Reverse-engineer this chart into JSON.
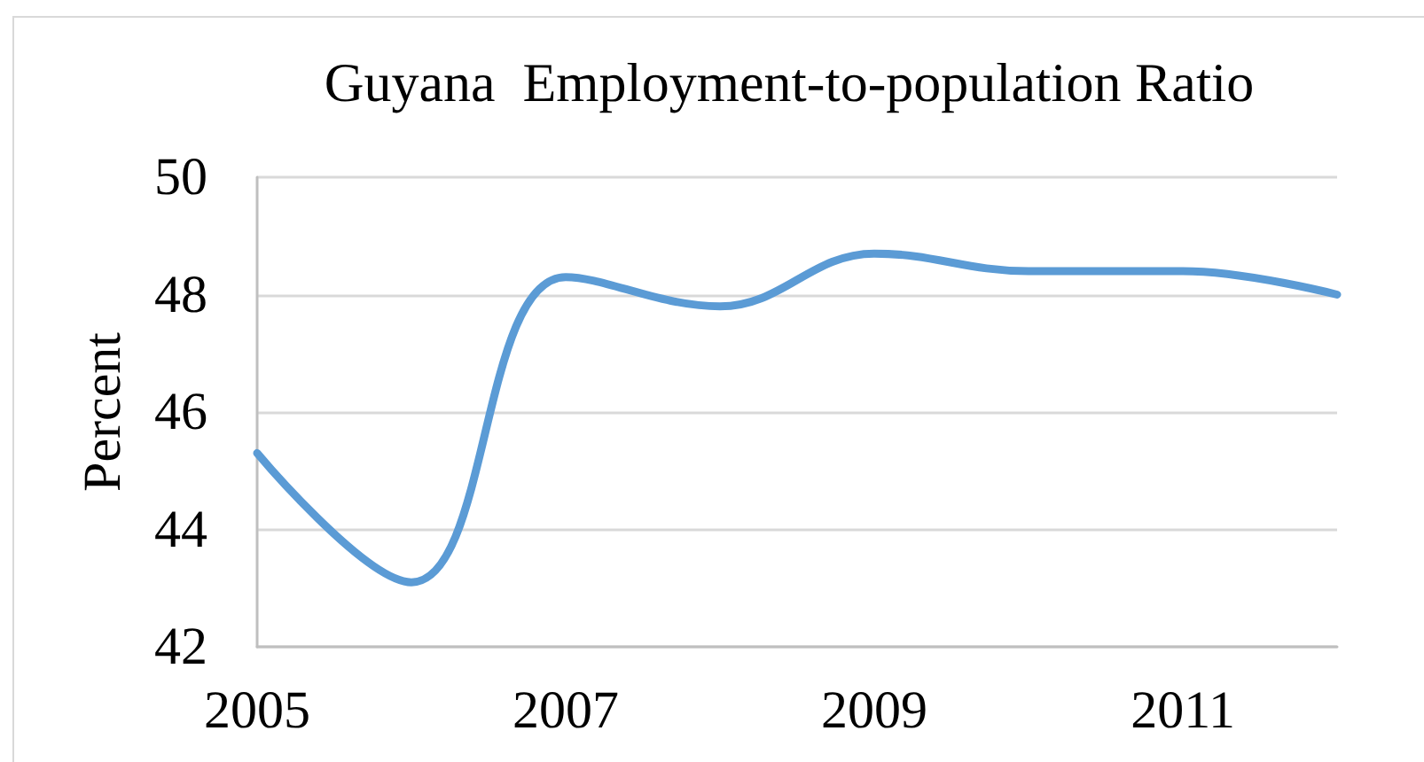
{
  "chart_data": {
    "type": "line",
    "title": "Guyana  Employment-to-population Ratio",
    "ylabel": "Percent",
    "x": [
      2005,
      2006,
      2007,
      2008,
      2009,
      2010,
      2011,
      2012
    ],
    "series": [
      {
        "color": "#5b9bd5",
        "values": [
          45.3,
          43.1,
          48.3,
          47.8,
          48.7,
          48.4,
          48.4,
          48.0
        ]
      }
    ],
    "xlim": [
      2005,
      2012
    ],
    "xticks": [
      2005,
      2007,
      2009,
      2011
    ],
    "ylim": [
      42,
      50
    ],
    "yticks": [
      42,
      44,
      46,
      48,
      50
    ],
    "grid": "y",
    "marker": "none"
  }
}
